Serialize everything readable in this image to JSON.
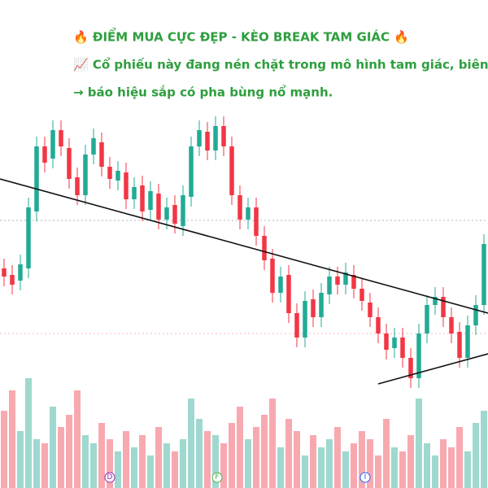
{
  "annotations": {
    "headline": "🔥 ĐIỂM MUA CỰC ĐẸP - KÈO BREAK TAM GIÁC 🔥",
    "line1": "📈 Cổ phiếu này đang nén chặt trong mô hình tam giác, biên độ",
    "line2": "→ báo hiệu sắp có pha bùng nổ mạnh."
  },
  "markers": [
    "D",
    "F",
    "I"
  ],
  "chart_data": {
    "type": "candlestick",
    "up_color": "#22ab94",
    "down_color": "#f23645",
    "volume_up_color": "#9fd8ce",
    "volume_down_color": "#f8a9b0",
    "ylim": [
      0,
      600
    ],
    "volume_ylim": [
      0,
      400
    ],
    "open": [
      270,
      262,
      255,
      270,
      340,
      420,
      405,
      440,
      418,
      382,
      360,
      410,
      425,
      395,
      378,
      388,
      355,
      372,
      342,
      362,
      330,
      348,
      322,
      358,
      420,
      438,
      415,
      445,
      420,
      360,
      330,
      345,
      310,
      282,
      240,
      262,
      215,
      185,
      232,
      210,
      238,
      260,
      250,
      262,
      245,
      228,
      210,
      190,
      172,
      185,
      160,
      135,
      190,
      225,
      235,
      210,
      192,
      160,
      200,
      225
    ],
    "high": [
      282,
      274,
      287,
      357,
      432,
      432,
      452,
      452,
      430,
      394,
      422,
      442,
      437,
      407,
      402,
      400,
      382,
      384,
      377,
      374,
      357,
      360,
      372,
      432,
      452,
      450,
      457,
      457,
      432,
      372,
      357,
      357,
      322,
      294,
      272,
      274,
      227,
      242,
      244,
      252,
      272,
      272,
      277,
      274,
      257,
      240,
      222,
      202,
      197,
      197,
      172,
      202,
      237,
      247,
      247,
      222,
      204,
      212,
      237,
      312
    ],
    "low": [
      248,
      238,
      243,
      258,
      328,
      388,
      393,
      408,
      368,
      348,
      348,
      398,
      383,
      368,
      366,
      343,
      343,
      328,
      330,
      318,
      318,
      313,
      310,
      346,
      408,
      403,
      403,
      408,
      348,
      318,
      318,
      298,
      268,
      228,
      228,
      203,
      173,
      173,
      198,
      198,
      226,
      238,
      238,
      233,
      218,
      198,
      178,
      158,
      160,
      148,
      123,
      123,
      178,
      213,
      198,
      178,
      148,
      148,
      188,
      213
    ],
    "close": [
      260,
      250,
      275,
      345,
      420,
      400,
      440,
      420,
      380,
      360,
      410,
      430,
      395,
      380,
      390,
      355,
      370,
      340,
      365,
      330,
      345,
      325,
      360,
      420,
      440,
      415,
      445,
      420,
      360,
      330,
      345,
      310,
      280,
      240,
      260,
      215,
      185,
      230,
      210,
      240,
      260,
      250,
      265,
      245,
      230,
      210,
      190,
      170,
      185,
      160,
      135,
      190,
      225,
      235,
      210,
      190,
      160,
      200,
      225,
      300
    ],
    "volume": [
      95,
      120,
      70,
      135,
      60,
      55,
      100,
      75,
      90,
      120,
      65,
      55,
      80,
      60,
      45,
      70,
      50,
      65,
      40,
      75,
      55,
      45,
      60,
      110,
      85,
      70,
      65,
      55,
      80,
      100,
      60,
      75,
      90,
      110,
      50,
      85,
      70,
      40,
      65,
      50,
      60,
      75,
      45,
      55,
      70,
      60,
      40,
      85,
      50,
      45,
      65,
      110,
      55,
      40,
      60,
      50,
      75,
      45,
      80,
      95
    ]
  }
}
